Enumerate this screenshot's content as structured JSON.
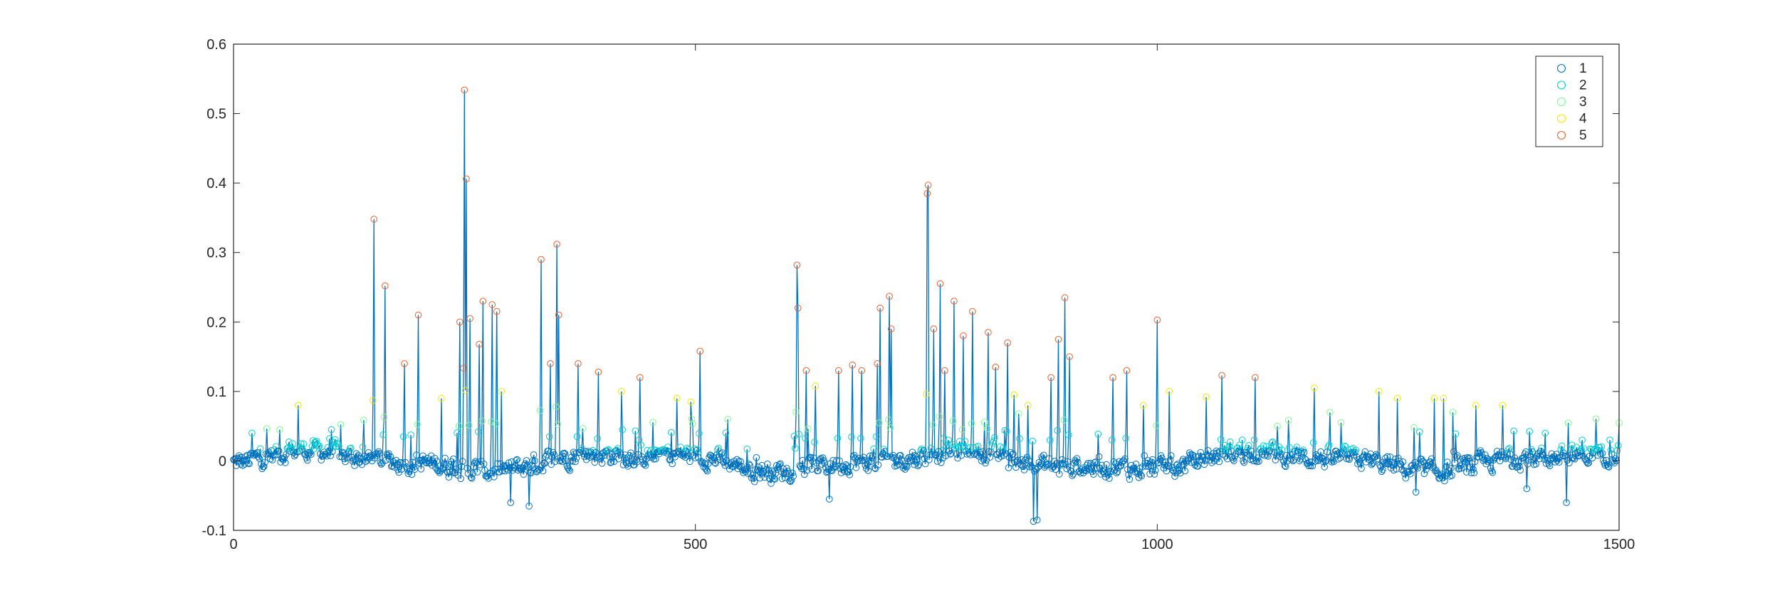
{
  "chart_data": {
    "type": "line",
    "title": "",
    "xlabel": "",
    "ylabel": "",
    "xlim": [
      0,
      1500
    ],
    "ylim": [
      -0.1,
      0.6
    ],
    "x_ticks": [
      "0",
      "500",
      "1000",
      "1500"
    ],
    "x_tick_values": [
      0,
      500,
      1000,
      1500
    ],
    "y_ticks": [
      "-0.1",
      "0",
      "0.1",
      "0.2",
      "0.3",
      "0.4",
      "0.5",
      "0.6"
    ],
    "y_tick_values": [
      -0.1,
      0,
      0.1,
      0.2,
      0.3,
      0.4,
      0.5,
      0.6
    ],
    "grid": false,
    "legend_position": "top-right",
    "line_color": "#0072BD",
    "marker": "circle",
    "point_count": 1500,
    "legend": [
      {
        "label": "1",
        "color": "#0072BD"
      },
      {
        "label": "2",
        "color": "#00CED1"
      },
      {
        "label": "3",
        "color": "#7CFC8C"
      },
      {
        "label": "4",
        "color": "#F2E600"
      },
      {
        "label": "5",
        "color": "#E8622B"
      }
    ],
    "class_thresholds": [
      0.015,
      0.045,
      0.08,
      0.12
    ],
    "peaks": [
      [
        152,
        0.348
      ],
      [
        164,
        0.252
      ],
      [
        185,
        0.14
      ],
      [
        200,
        0.21
      ],
      [
        250,
        0.534
      ],
      [
        252,
        0.406
      ],
      [
        256,
        0.205
      ],
      [
        266,
        0.168
      ],
      [
        280,
        0.225
      ],
      [
        285,
        0.215
      ],
      [
        333,
        0.29
      ],
      [
        350,
        0.312
      ],
      [
        352,
        0.21
      ],
      [
        373,
        0.14
      ],
      [
        395,
        0.128
      ],
      [
        505,
        0.158
      ],
      [
        610,
        0.282
      ],
      [
        611,
        0.22
      ],
      [
        655,
        0.13
      ],
      [
        670,
        0.138
      ],
      [
        700,
        0.22
      ],
      [
        710,
        0.237
      ],
      [
        752,
        0.397
      ],
      [
        751,
        0.385
      ],
      [
        765,
        0.255
      ],
      [
        780,
        0.23
      ],
      [
        800,
        0.215
      ],
      [
        817,
        0.185
      ],
      [
        838,
        0.17
      ],
      [
        885,
        0.12
      ],
      [
        900,
        0.235
      ],
      [
        952,
        0.12
      ],
      [
        967,
        0.13
      ],
      [
        1000,
        0.203
      ],
      [
        1053,
        0.092
      ],
      [
        1070,
        0.123
      ],
      [
        1106,
        0.12
      ],
      [
        1170,
        0.105
      ],
      [
        1240,
        0.1
      ],
      [
        1300,
        0.09
      ],
      [
        1345,
        0.08
      ],
      [
        1374,
        0.08
      ]
    ],
    "troughs": [
      [
        256,
        -0.07
      ],
      [
        300,
        -0.06
      ],
      [
        320,
        -0.065
      ],
      [
        645,
        -0.055
      ],
      [
        866,
        -0.087
      ],
      [
        870,
        -0.085
      ],
      [
        885,
        -0.07
      ],
      [
        1443,
        -0.06
      ],
      [
        1400,
        -0.04
      ],
      [
        1280,
        -0.045
      ]
    ],
    "bumps": [
      [
        20,
        0.04
      ],
      [
        50,
        0.045
      ],
      [
        70,
        0.08
      ],
      [
        140,
        0.02
      ],
      [
        225,
        0.09
      ],
      [
        245,
        0.2
      ],
      [
        270,
        0.23
      ],
      [
        290,
        0.1
      ],
      [
        320,
        0.07
      ],
      [
        343,
        0.14
      ],
      [
        440,
        0.12
      ],
      [
        420,
        0.1
      ],
      [
        480,
        0.09
      ],
      [
        495,
        0.085
      ],
      [
        535,
        0.06
      ],
      [
        620,
        0.13
      ],
      [
        630,
        0.108
      ],
      [
        680,
        0.13
      ],
      [
        697,
        0.14
      ],
      [
        712,
        0.19
      ],
      [
        758,
        0.19
      ],
      [
        770,
        0.13
      ],
      [
        790,
        0.18
      ],
      [
        825,
        0.135
      ],
      [
        845,
        0.095
      ],
      [
        860,
        0.08
      ],
      [
        893,
        0.175
      ],
      [
        905,
        0.15
      ],
      [
        985,
        0.08
      ],
      [
        1013,
        0.1
      ],
      [
        1130,
        0.05
      ],
      [
        1260,
        0.09
      ],
      [
        1310,
        0.09
      ],
      [
        1320,
        0.07
      ],
      [
        1420,
        0.04
      ],
      [
        1460,
        0.03
      ],
      [
        1490,
        0.03
      ]
    ]
  }
}
